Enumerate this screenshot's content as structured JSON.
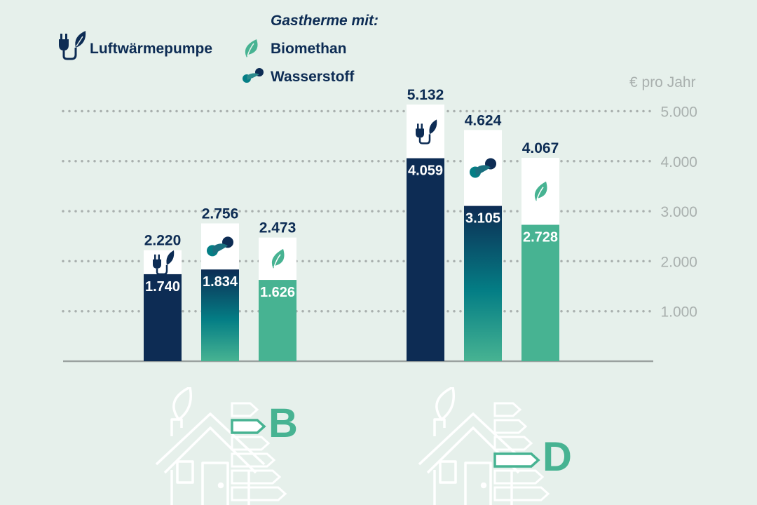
{
  "legend": {
    "title": "Gastherme mit:",
    "heat_pump": "Luftwärmepumpe",
    "biomethane": "Biomethan",
    "hydrogen": "Wasserstoff"
  },
  "unit": "€ pro Jahr",
  "colors": {
    "heat_pump": "#0d2c54",
    "hydrogen": "#047e85",
    "biomethane": "#47b392",
    "background": "#e6f0eb",
    "grid": "#a9b0ae"
  },
  "chart_data": {
    "type": "bar",
    "stacked": true,
    "y_unit": "€ pro Jahr",
    "ylim": [
      0,
      5132
    ],
    "yticks": [
      "1.000",
      "2.000",
      "3.000",
      "4.000",
      "5.000"
    ],
    "grid": "dotted horizontal",
    "groups": [
      {
        "efficiency_class": "B",
        "bars": [
          {
            "system": "Luftwärmepumpe",
            "base": 1740,
            "base_label": "1.740",
            "total": 2220,
            "total_label": "2.220",
            "icon": "plug-icon"
          },
          {
            "system": "Wasserstoff",
            "base": 1834,
            "base_label": "1.834",
            "total": 2756,
            "total_label": "2.756",
            "icon": "hydrogen-molecule-icon"
          },
          {
            "system": "Biomethan",
            "base": 1626,
            "base_label": "1.626",
            "total": 2473,
            "total_label": "2.473",
            "icon": "leaf-icon"
          }
        ]
      },
      {
        "efficiency_class": "D",
        "bars": [
          {
            "system": "Luftwärmepumpe",
            "base": 4059,
            "base_label": "4.059",
            "total": 5132,
            "total_label": "5.132",
            "icon": "plug-icon"
          },
          {
            "system": "Wasserstoff",
            "base": 3105,
            "base_label": "3.105",
            "total": 4624,
            "total_label": "4.624",
            "icon": "hydrogen-molecule-icon"
          },
          {
            "system": "Biomethan",
            "base": 2728,
            "base_label": "2.728",
            "total": 4067,
            "total_label": "4.067",
            "icon": "leaf-icon"
          }
        ]
      }
    ]
  }
}
